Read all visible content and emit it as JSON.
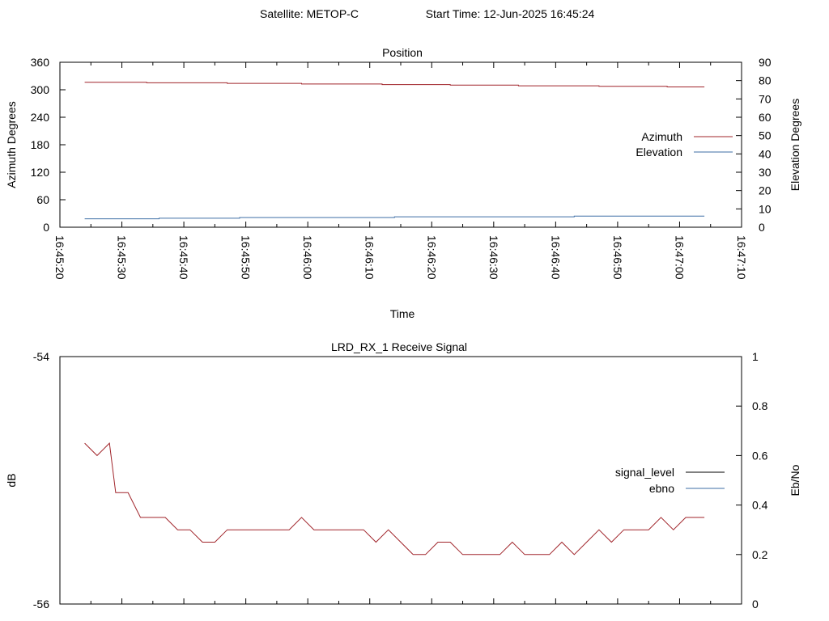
{
  "header": {
    "satellite": "Satellite: METOP-C",
    "start_time": "Start Time: 12-Jun-2025 16:45:24"
  },
  "chart_data": [
    {
      "type": "line",
      "title": "Position",
      "xlabel": "Time",
      "ylabel": "Azimuth Degrees",
      "y2label": "Elevation Degrees",
      "x_ticks": [
        "16:45:20",
        "16:45:30",
        "16:45:40",
        "16:45:50",
        "16:46:00",
        "16:46:10",
        "16:46:20",
        "16:46:30",
        "16:46:40",
        "16:46:50",
        "16:47:00",
        "16:47:10"
      ],
      "xlim": [
        "16:45:20",
        "16:47:10"
      ],
      "ylim": [
        0,
        360
      ],
      "y_ticks": [
        "0",
        "60",
        "120",
        "180",
        "240",
        "300",
        "360"
      ],
      "y2lim": [
        0,
        90
      ],
      "y2_ticks": [
        "0",
        "10",
        "20",
        "30",
        "40",
        "50",
        "60",
        "70",
        "80",
        "90"
      ],
      "legend_position": "right",
      "grid": false,
      "series": [
        {
          "name": "Azimuth",
          "axis": "y",
          "color": "#a0242a",
          "x": [
            "16:45:24",
            "16:45:34",
            "16:45:34",
            "16:45:47",
            "16:45:47",
            "16:45:59",
            "16:45:59",
            "16:46:12",
            "16:46:12",
            "16:46:23",
            "16:46:23",
            "16:46:34",
            "16:46:34",
            "16:46:47",
            "16:46:47",
            "16:46:58",
            "16:46:58",
            "16:47:04"
          ],
          "values": [
            316.5,
            316.5,
            315.2,
            315.2,
            313.9,
            313.9,
            312.6,
            312.6,
            311.3,
            311.3,
            310.0,
            310.0,
            308.7,
            308.7,
            307.4,
            307.4,
            306.1,
            306.1
          ]
        },
        {
          "name": "Elevation",
          "axis": "y2",
          "color": "#3d6ea5",
          "x": [
            "16:45:24",
            "16:45:36",
            "16:45:36",
            "16:45:49",
            "16:45:49",
            "16:46:14",
            "16:46:14",
            "16:46:43",
            "16:46:43",
            "16:47:04"
          ],
          "values": [
            4.6,
            4.6,
            4.9,
            4.9,
            5.3,
            5.3,
            5.7,
            5.7,
            6.1,
            6.1
          ]
        }
      ]
    },
    {
      "type": "line",
      "title": "LRD_RX_1 Receive Signal",
      "ylabel": "dB",
      "y2label": "Eb/No",
      "ylim": [
        -56,
        -54
      ],
      "y_ticks": [
        "-56",
        "-54"
      ],
      "y2lim": [
        0,
        1
      ],
      "y2_ticks": [
        "0",
        "0.2",
        "0.4",
        "0.6",
        "0.8",
        "1"
      ],
      "xlim": [
        "16:45:20",
        "16:47:10"
      ],
      "x_minor_tick_count": 21,
      "legend_position": "right",
      "grid": false,
      "series": [
        {
          "name": "signal_level",
          "axis": "y",
          "color": "#000000",
          "x": [],
          "values": []
        },
        {
          "name": "ebno",
          "axis": "y2",
          "color": "#3d6ea5",
          "trace_color": "#a0242a",
          "x": [
            "16:45:24",
            "16:45:26",
            "16:45:28",
            "16:45:29",
            "16:45:31",
            "16:45:33",
            "16:45:35",
            "16:45:37",
            "16:45:39",
            "16:45:41",
            "16:45:43",
            "16:45:45",
            "16:45:47",
            "16:45:49",
            "16:45:51",
            "16:45:53",
            "16:45:55",
            "16:45:57",
            "16:45:59",
            "16:46:01",
            "16:46:03",
            "16:46:05",
            "16:46:07",
            "16:46:09",
            "16:46:11",
            "16:46:13",
            "16:46:15",
            "16:46:17",
            "16:46:19",
            "16:46:21",
            "16:46:23",
            "16:46:25",
            "16:46:27",
            "16:46:29",
            "16:46:31",
            "16:46:33",
            "16:46:35",
            "16:46:37",
            "16:46:39",
            "16:46:41",
            "16:46:43",
            "16:46:45",
            "16:46:47",
            "16:46:49",
            "16:46:51",
            "16:46:53",
            "16:46:55",
            "16:46:57",
            "16:46:59",
            "16:47:01",
            "16:47:04"
          ],
          "values": [
            0.65,
            0.6,
            0.65,
            0.45,
            0.45,
            0.35,
            0.35,
            0.35,
            0.3,
            0.3,
            0.25,
            0.25,
            0.3,
            0.3,
            0.3,
            0.3,
            0.3,
            0.3,
            0.35,
            0.3,
            0.3,
            0.3,
            0.3,
            0.3,
            0.25,
            0.3,
            0.25,
            0.2,
            0.2,
            0.25,
            0.25,
            0.2,
            0.2,
            0.2,
            0.2,
            0.25,
            0.2,
            0.2,
            0.2,
            0.25,
            0.2,
            0.25,
            0.3,
            0.25,
            0.3,
            0.3,
            0.3,
            0.35,
            0.3,
            0.35,
            0.35
          ]
        }
      ]
    }
  ]
}
